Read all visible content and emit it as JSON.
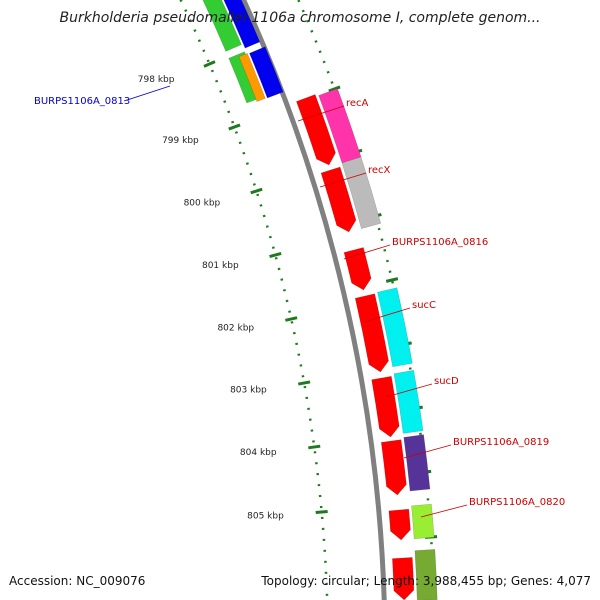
{
  "title": "Burkholderia pseudomallei 1106a chromosome I, complete genom...",
  "footer": {
    "accession": "Accession: NC_009076",
    "topology": "Topology: circular; Length: 3,988,455 bp; Genes: 4,077"
  },
  "ticks": [
    "798 kbp",
    "799 kbp",
    "800 kbp",
    "801 kbp",
    "802 kbp",
    "803 kbp",
    "804 kbp",
    "805 kbp"
  ],
  "labels": [
    {
      "text": "BURPS1106A_0813",
      "color": "#0000cc",
      "side": "left"
    },
    {
      "text": "recA",
      "color": "#cc0000",
      "side": "right"
    },
    {
      "text": "recX",
      "color": "#cc0000",
      "side": "right"
    },
    {
      "text": "BURPS1106A_0816",
      "color": "#cc0000",
      "side": "right"
    },
    {
      "text": "sucC",
      "color": "#cc0000",
      "side": "right"
    },
    {
      "text": "sucD",
      "color": "#cc0000",
      "side": "right"
    },
    {
      "text": "BURPS1106A_0819",
      "color": "#cc0000",
      "side": "right"
    },
    {
      "text": "BURPS1106A_0820",
      "color": "#cc0000",
      "side": "right"
    }
  ],
  "colors": {
    "backbone": "#808080",
    "tick": "#1e7a1e",
    "cds": "#ff0000",
    "cds_reverse": "#0000ee",
    "cds_reverse_green": "#33cc33",
    "cds_reverse_orange": "#ff9900",
    "feature_magenta": "#ff33aa",
    "feature_grey": "#bbbbbb",
    "feature_cyan": "#00f0f0",
    "feature_purple": "#553399",
    "feature_lime": "#99ee33",
    "feature_olive": "#77aa33"
  }
}
